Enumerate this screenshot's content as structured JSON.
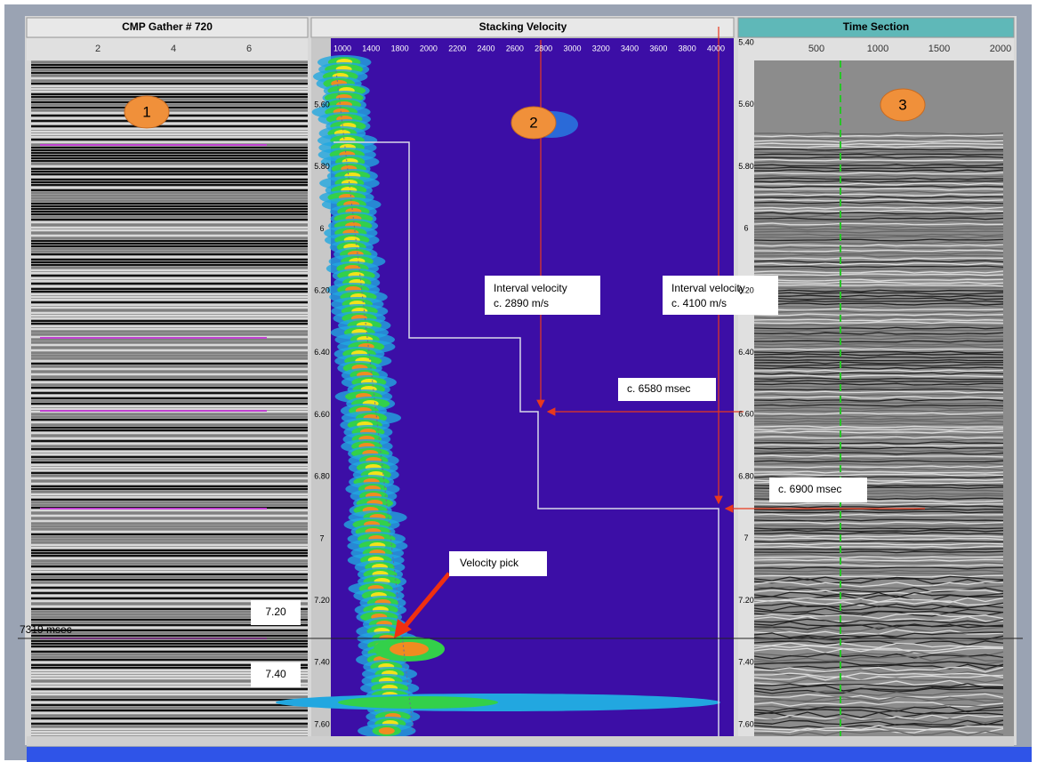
{
  "panels": [
    {
      "title": "CMP Gather # 720",
      "x_ticks": [
        "2",
        "4",
        "6"
      ],
      "marker": "1"
    },
    {
      "title": "Stacking Velocity",
      "x_ticks": [
        "1000",
        "1400",
        "1800",
        "2000",
        "2200",
        "2400",
        "2600",
        "2800",
        "3000",
        "3200",
        "3400",
        "3600",
        "3800",
        "4000"
      ],
      "y_ticks": [
        "5.60",
        "5.80",
        "6",
        "6.20",
        "6.40",
        "6.60",
        "6.80",
        "7",
        "7.20",
        "7.40",
        "7.60"
      ],
      "marker": "2"
    },
    {
      "title": "Time Section",
      "x_ticks": [
        "500",
        "1000",
        "1500",
        "2000"
      ],
      "y_ticks": [
        "5.40",
        "5.60",
        "5.80",
        "6",
        "6.20",
        "6.40",
        "6.60",
        "6.80",
        "7",
        "7.20",
        "7.40",
        "7.60"
      ],
      "marker": "3"
    }
  ],
  "annotations": {
    "interval_velocity_1": [
      "Interval velocity",
      "c. 2890 m/s"
    ],
    "interval_velocity_2": [
      "Interval velocity",
      "c. 4100 m/s"
    ],
    "time_1": "c. 6580 msec",
    "time_2": "c. 6900 msec",
    "velocity_pick": "Velocity pick",
    "label_720": "7.20",
    "label_740": "7.40",
    "pick_time": "7319 msec"
  }
}
